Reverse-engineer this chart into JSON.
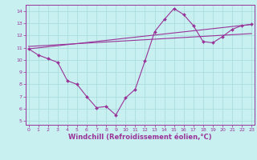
{
  "title": "",
  "xlabel": "Windchill (Refroidissement éolien,°C)",
  "ylabel": "",
  "bg_color": "#c8f0f0",
  "line_color": "#993399",
  "grid_color": "#aadddd",
  "x_ticks": [
    0,
    1,
    2,
    3,
    4,
    5,
    6,
    7,
    8,
    9,
    10,
    11,
    12,
    13,
    14,
    15,
    16,
    17,
    18,
    19,
    20,
    21,
    22,
    23
  ],
  "y_ticks": [
    5,
    6,
    7,
    8,
    9,
    10,
    11,
    12,
    13,
    14
  ],
  "xlim": [
    -0.3,
    23.3
  ],
  "ylim": [
    4.7,
    14.5
  ],
  "series1_x": [
    0,
    1,
    2,
    3,
    4,
    5,
    6,
    7,
    8,
    9,
    10,
    11,
    12,
    13,
    14,
    15,
    16,
    17,
    18,
    19,
    20,
    21,
    22,
    23
  ],
  "series1_y": [
    10.9,
    10.4,
    10.1,
    9.8,
    8.3,
    8.0,
    7.0,
    6.1,
    6.2,
    5.5,
    6.9,
    7.6,
    9.9,
    12.3,
    13.3,
    14.2,
    13.7,
    12.8,
    11.5,
    11.4,
    11.9,
    12.5,
    12.8,
    12.9
  ],
  "trendline_x": [
    0,
    23
  ],
  "trendline_y": [
    10.9,
    12.9
  ],
  "trendline2_x": [
    0,
    23
  ],
  "trendline2_y": [
    11.1,
    12.15
  ],
  "font_color": "#993399",
  "tick_fontsize": 4.5,
  "xlabel_fontsize": 6.0
}
